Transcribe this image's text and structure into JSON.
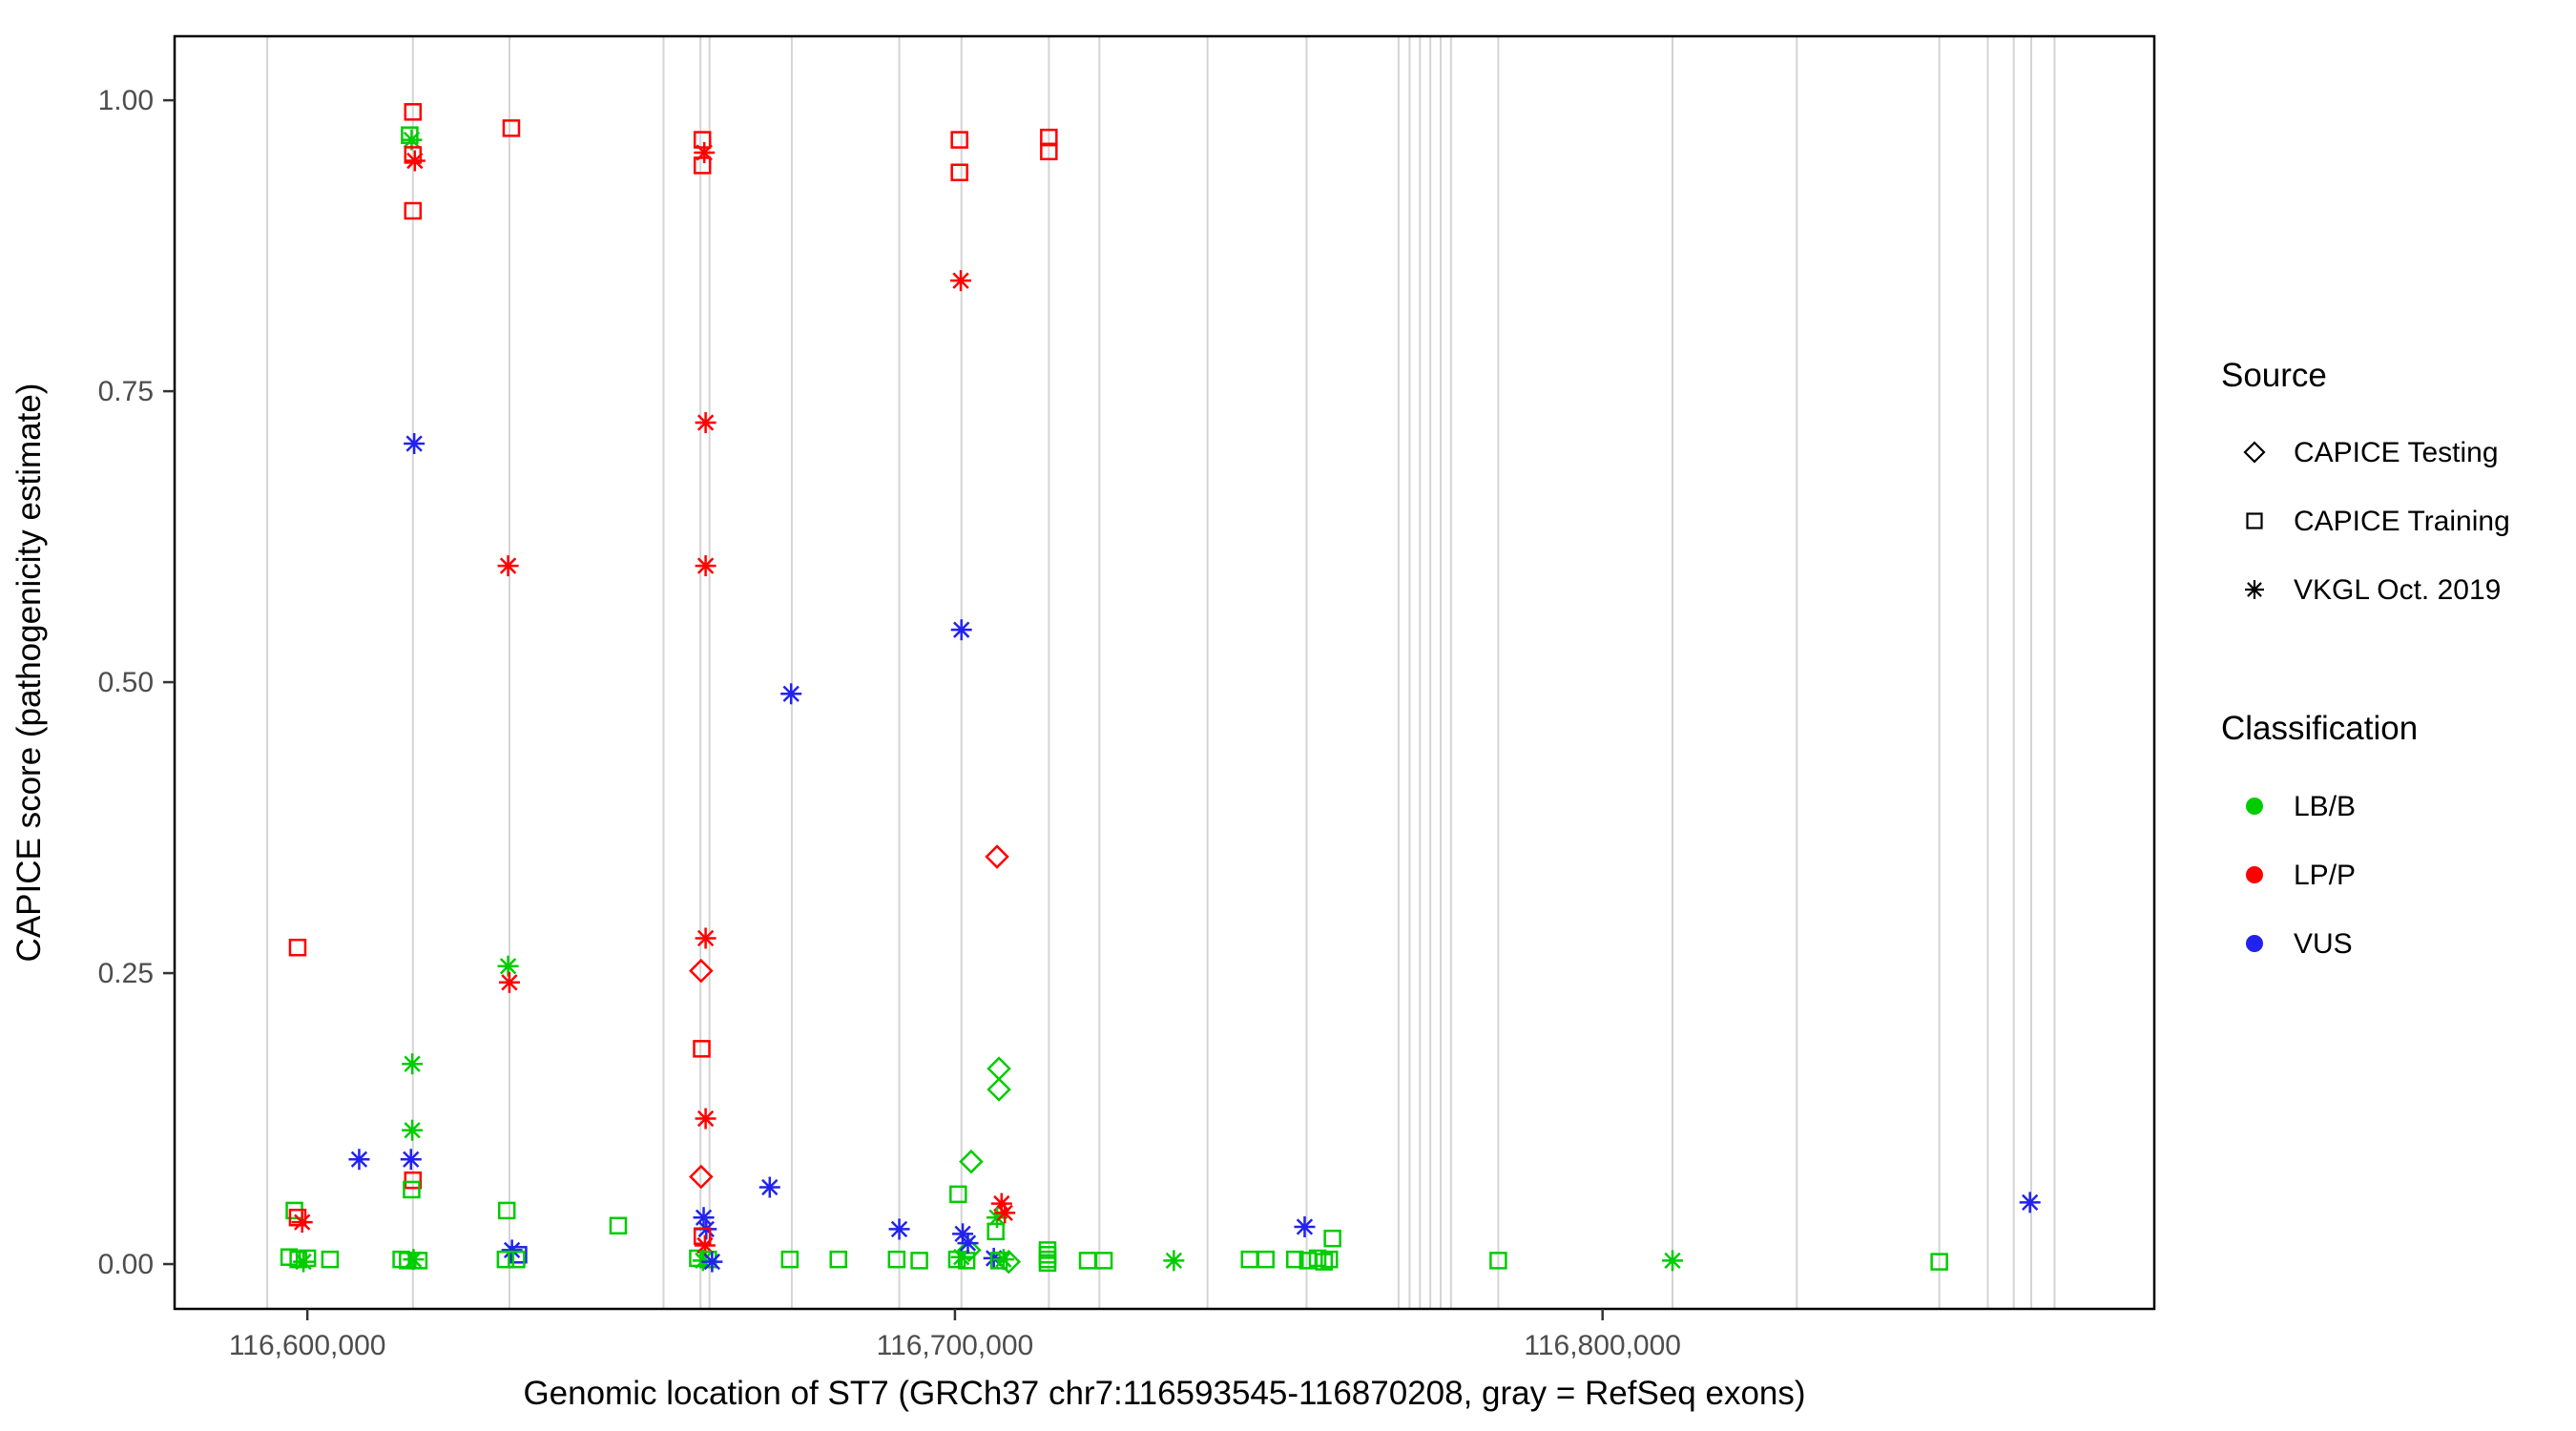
{
  "chart_data": {
    "type": "scatter",
    "title": "",
    "xlabel": "Genomic location of ST7 (GRCh37 chr7:116593545-116870208, gray = RefSeq exons)",
    "ylabel": "CAPICE score (pathogenicity estimate)",
    "xlim": [
      116579500,
      116885200
    ],
    "ylim": [
      -0.0385,
      1.055
    ],
    "grid": "off",
    "legend_position": "right",
    "exon_color": "#d4d4d4",
    "x_ticks": [
      {
        "value": 116600000,
        "label": "116,600,000"
      },
      {
        "value": 116700000,
        "label": "116,700,000"
      },
      {
        "value": 116800000,
        "label": "116,800,000"
      }
    ],
    "y_ticks": [
      {
        "value": 0.0,
        "label": "0.00"
      },
      {
        "value": 0.25,
        "label": "0.25"
      },
      {
        "value": 0.5,
        "label": "0.50"
      },
      {
        "value": 0.75,
        "label": "0.75"
      },
      {
        "value": 1.0,
        "label": "1.00"
      }
    ],
    "colors": {
      "LB/B": "#00CC00",
      "LP/P": "#FF0000",
      "VUS": "#2222EE"
    },
    "legend": {
      "source": {
        "title": "Source",
        "items": [
          {
            "label": "CAPICE Testing",
            "glyph": "diamond"
          },
          {
            "label": "CAPICE Training",
            "glyph": "square"
          },
          {
            "label": "VKGL Oct. 2019",
            "glyph": "asterisk"
          }
        ]
      },
      "classification": {
        "title": "Classification",
        "items": [
          {
            "label": "LB/B",
            "color": "#00CC00"
          },
          {
            "label": "LP/P",
            "color": "#FF0000"
          },
          {
            "label": "VUS",
            "color": "#2222EE"
          }
        ]
      }
    },
    "exons": [
      116593800,
      116616300,
      116631200,
      116655000,
      116660700,
      116662100,
      116674800,
      116691400,
      116701000,
      116714500,
      116722300,
      116739000,
      116754300,
      116768500,
      116770200,
      116771800,
      116773400,
      116775000,
      116776600,
      116783900,
      116810800,
      116830000,
      116852000,
      116859500,
      116863500,
      116866200,
      116869800
    ],
    "points": [
      {
        "x": 116597200,
        "y": 0.006,
        "src": "training",
        "cls": "LB/B"
      },
      {
        "x": 116598000,
        "y": 0.046,
        "src": "training",
        "cls": "LB/B"
      },
      {
        "x": 116598500,
        "y": 0.272,
        "src": "training",
        "cls": "LP/P"
      },
      {
        "x": 116598500,
        "y": 0.04,
        "src": "training",
        "cls": "LP/P"
      },
      {
        "x": 116599200,
        "y": 0.036,
        "src": "vkgl",
        "cls": "LP/P"
      },
      {
        "x": 116598600,
        "y": 0.004,
        "src": "training",
        "cls": "LB/B"
      },
      {
        "x": 116599400,
        "y": 0.002,
        "src": "vkgl",
        "cls": "LB/B"
      },
      {
        "x": 116600000,
        "y": 0.005,
        "src": "training",
        "cls": "LB/B"
      },
      {
        "x": 116603500,
        "y": 0.004,
        "src": "training",
        "cls": "LB/B"
      },
      {
        "x": 116608000,
        "y": 0.09,
        "src": "vkgl",
        "cls": "VUS"
      },
      {
        "x": 116614500,
        "y": 0.004,
        "src": "training",
        "cls": "LB/B"
      },
      {
        "x": 116615500,
        "y": 0.003,
        "src": "training",
        "cls": "LB/B"
      },
      {
        "x": 116615800,
        "y": 0.97,
        "src": "training",
        "cls": "LB/B"
      },
      {
        "x": 116616100,
        "y": 0.966,
        "src": "vkgl",
        "cls": "LB/B"
      },
      {
        "x": 116616300,
        "y": 0.99,
        "src": "training",
        "cls": "LP/P"
      },
      {
        "x": 116616300,
        "y": 0.953,
        "src": "training",
        "cls": "LP/P"
      },
      {
        "x": 116616600,
        "y": 0.948,
        "src": "vkgl",
        "cls": "LP/P"
      },
      {
        "x": 116616300,
        "y": 0.905,
        "src": "training",
        "cls": "LP/P"
      },
      {
        "x": 116616500,
        "y": 0.705,
        "src": "vkgl",
        "cls": "VUS"
      },
      {
        "x": 116616200,
        "y": 0.172,
        "src": "vkgl",
        "cls": "LB/B"
      },
      {
        "x": 116616200,
        "y": 0.115,
        "src": "vkgl",
        "cls": "LB/B"
      },
      {
        "x": 116616000,
        "y": 0.09,
        "src": "vkgl",
        "cls": "VUS"
      },
      {
        "x": 116616300,
        "y": 0.072,
        "src": "training",
        "cls": "LP/P"
      },
      {
        "x": 116616100,
        "y": 0.064,
        "src": "training",
        "cls": "LB/B"
      },
      {
        "x": 116616400,
        "y": 0.004,
        "src": "vkgl",
        "cls": "LB/B"
      },
      {
        "x": 116617200,
        "y": 0.003,
        "src": "training",
        "cls": "LB/B"
      },
      {
        "x": 116630800,
        "y": 0.046,
        "src": "training",
        "cls": "LB/B"
      },
      {
        "x": 116631500,
        "y": 0.976,
        "src": "training",
        "cls": "LP/P"
      },
      {
        "x": 116631000,
        "y": 0.6,
        "src": "vkgl",
        "cls": "LP/P"
      },
      {
        "x": 116631000,
        "y": 0.256,
        "src": "vkgl",
        "cls": "LB/B"
      },
      {
        "x": 116631200,
        "y": 0.242,
        "src": "vkgl",
        "cls": "LP/P"
      },
      {
        "x": 116631600,
        "y": 0.012,
        "src": "vkgl",
        "cls": "VUS"
      },
      {
        "x": 116632600,
        "y": 0.008,
        "src": "training",
        "cls": "VUS"
      },
      {
        "x": 116630600,
        "y": 0.004,
        "src": "training",
        "cls": "LB/B"
      },
      {
        "x": 116632300,
        "y": 0.004,
        "src": "training",
        "cls": "LB/B"
      },
      {
        "x": 116648000,
        "y": 0.033,
        "src": "training",
        "cls": "LB/B"
      },
      {
        "x": 116660300,
        "y": 0.005,
        "src": "training",
        "cls": "LB/B"
      },
      {
        "x": 116660800,
        "y": 0.252,
        "src": "testing",
        "cls": "LP/P"
      },
      {
        "x": 116660800,
        "y": 0.075,
        "src": "testing",
        "cls": "LP/P"
      },
      {
        "x": 116660900,
        "y": 0.185,
        "src": "training",
        "cls": "LP/P"
      },
      {
        "x": 116661000,
        "y": 0.966,
        "src": "training",
        "cls": "LP/P"
      },
      {
        "x": 116661300,
        "y": 0.955,
        "src": "vkgl",
        "cls": "LP/P"
      },
      {
        "x": 116661000,
        "y": 0.944,
        "src": "training",
        "cls": "LP/P"
      },
      {
        "x": 116661500,
        "y": 0.723,
        "src": "vkgl",
        "cls": "LP/P"
      },
      {
        "x": 116661500,
        "y": 0.6,
        "src": "vkgl",
        "cls": "LP/P"
      },
      {
        "x": 116661500,
        "y": 0.28,
        "src": "vkgl",
        "cls": "LP/P"
      },
      {
        "x": 116661500,
        "y": 0.125,
        "src": "vkgl",
        "cls": "LP/P"
      },
      {
        "x": 116661200,
        "y": 0.04,
        "src": "vkgl",
        "cls": "VUS"
      },
      {
        "x": 116661600,
        "y": 0.03,
        "src": "vkgl",
        "cls": "VUS"
      },
      {
        "x": 116661000,
        "y": 0.024,
        "src": "training",
        "cls": "LP/P"
      },
      {
        "x": 116661400,
        "y": 0.016,
        "src": "vkgl",
        "cls": "LP/P"
      },
      {
        "x": 116661100,
        "y": 0.003,
        "src": "vkgl",
        "cls": "LB/B"
      },
      {
        "x": 116661900,
        "y": 0.004,
        "src": "training",
        "cls": "LB/B"
      },
      {
        "x": 116662500,
        "y": 0.002,
        "src": "vkgl",
        "cls": "VUS"
      },
      {
        "x": 116671400,
        "y": 0.066,
        "src": "vkgl",
        "cls": "VUS"
      },
      {
        "x": 116674700,
        "y": 0.49,
        "src": "vkgl",
        "cls": "VUS"
      },
      {
        "x": 116674500,
        "y": 0.004,
        "src": "training",
        "cls": "LB/B"
      },
      {
        "x": 116682000,
        "y": 0.004,
        "src": "training",
        "cls": "LB/B"
      },
      {
        "x": 116691400,
        "y": 0.03,
        "src": "vkgl",
        "cls": "VUS"
      },
      {
        "x": 116691000,
        "y": 0.004,
        "src": "training",
        "cls": "LB/B"
      },
      {
        "x": 116694500,
        "y": 0.003,
        "src": "training",
        "cls": "LB/B"
      },
      {
        "x": 116700700,
        "y": 0.966,
        "src": "training",
        "cls": "LP/P"
      },
      {
        "x": 116700700,
        "y": 0.938,
        "src": "training",
        "cls": "LP/P"
      },
      {
        "x": 116700900,
        "y": 0.845,
        "src": "vkgl",
        "cls": "LP/P"
      },
      {
        "x": 116701000,
        "y": 0.545,
        "src": "vkgl",
        "cls": "VUS"
      },
      {
        "x": 116702500,
        "y": 0.088,
        "src": "testing",
        "cls": "LB/B"
      },
      {
        "x": 116700500,
        "y": 0.06,
        "src": "training",
        "cls": "LB/B"
      },
      {
        "x": 116701200,
        "y": 0.026,
        "src": "vkgl",
        "cls": "VUS"
      },
      {
        "x": 116700300,
        "y": 0.004,
        "src": "training",
        "cls": "LB/B"
      },
      {
        "x": 116701000,
        "y": 0.006,
        "src": "vkgl",
        "cls": "LB/B"
      },
      {
        "x": 116701800,
        "y": 0.003,
        "src": "training",
        "cls": "LB/B"
      },
      {
        "x": 116702200,
        "y": 0.012,
        "src": "testing",
        "cls": "LB/B"
      },
      {
        "x": 116702000,
        "y": 0.018,
        "src": "vkgl",
        "cls": "VUS"
      },
      {
        "x": 116706500,
        "y": 0.35,
        "src": "testing",
        "cls": "LP/P"
      },
      {
        "x": 116706800,
        "y": 0.168,
        "src": "testing",
        "cls": "LB/B"
      },
      {
        "x": 116706800,
        "y": 0.15,
        "src": "testing",
        "cls": "LB/B"
      },
      {
        "x": 116707200,
        "y": 0.052,
        "src": "vkgl",
        "cls": "LP/P"
      },
      {
        "x": 116706500,
        "y": 0.04,
        "src": "vkgl",
        "cls": "LB/B"
      },
      {
        "x": 116707700,
        "y": 0.044,
        "src": "vkgl",
        "cls": "LP/P"
      },
      {
        "x": 116706300,
        "y": 0.028,
        "src": "training",
        "cls": "LB/B"
      },
      {
        "x": 116706000,
        "y": 0.005,
        "src": "vkgl",
        "cls": "VUS"
      },
      {
        "x": 116706800,
        "y": 0.003,
        "src": "training",
        "cls": "LB/B"
      },
      {
        "x": 116707500,
        "y": 0.004,
        "src": "vkgl",
        "cls": "LB/B"
      },
      {
        "x": 116708300,
        "y": 0.002,
        "src": "testing",
        "cls": "LB/B"
      },
      {
        "x": 116714500,
        "y": 0.968,
        "src": "training",
        "cls": "LP/P"
      },
      {
        "x": 116714500,
        "y": 0.956,
        "src": "training",
        "cls": "LP/P"
      },
      {
        "x": 116714300,
        "y": 0.012,
        "src": "training",
        "cls": "LB/B"
      },
      {
        "x": 116714300,
        "y": 0.008,
        "src": "training",
        "cls": "LB/B"
      },
      {
        "x": 116714300,
        "y": 0.004,
        "src": "training",
        "cls": "LB/B"
      },
      {
        "x": 116714300,
        "y": 0.001,
        "src": "training",
        "cls": "LB/B"
      },
      {
        "x": 116720500,
        "y": 0.003,
        "src": "training",
        "cls": "LB/B"
      },
      {
        "x": 116723000,
        "y": 0.003,
        "src": "training",
        "cls": "LB/B"
      },
      {
        "x": 116733800,
        "y": 0.003,
        "src": "vkgl",
        "cls": "LB/B"
      },
      {
        "x": 116745500,
        "y": 0.004,
        "src": "training",
        "cls": "LB/B"
      },
      {
        "x": 116748000,
        "y": 0.004,
        "src": "training",
        "cls": "LB/B"
      },
      {
        "x": 116754000,
        "y": 0.032,
        "src": "vkgl",
        "cls": "VUS"
      },
      {
        "x": 116752500,
        "y": 0.004,
        "src": "training",
        "cls": "LB/B"
      },
      {
        "x": 116754500,
        "y": 0.003,
        "src": "training",
        "cls": "LB/B"
      },
      {
        "x": 116756000,
        "y": 0.005,
        "src": "training",
        "cls": "LB/B"
      },
      {
        "x": 116757000,
        "y": 0.002,
        "src": "training",
        "cls": "LB/B"
      },
      {
        "x": 116757800,
        "y": 0.004,
        "src": "training",
        "cls": "LB/B"
      },
      {
        "x": 116758300,
        "y": 0.022,
        "src": "training",
        "cls": "LB/B"
      },
      {
        "x": 116783900,
        "y": 0.003,
        "src": "training",
        "cls": "LB/B"
      },
      {
        "x": 116810800,
        "y": 0.003,
        "src": "vkgl",
        "cls": "LB/B"
      },
      {
        "x": 116852000,
        "y": 0.002,
        "src": "training",
        "cls": "LB/B"
      },
      {
        "x": 116866000,
        "y": 0.053,
        "src": "vkgl",
        "cls": "VUS"
      }
    ]
  }
}
